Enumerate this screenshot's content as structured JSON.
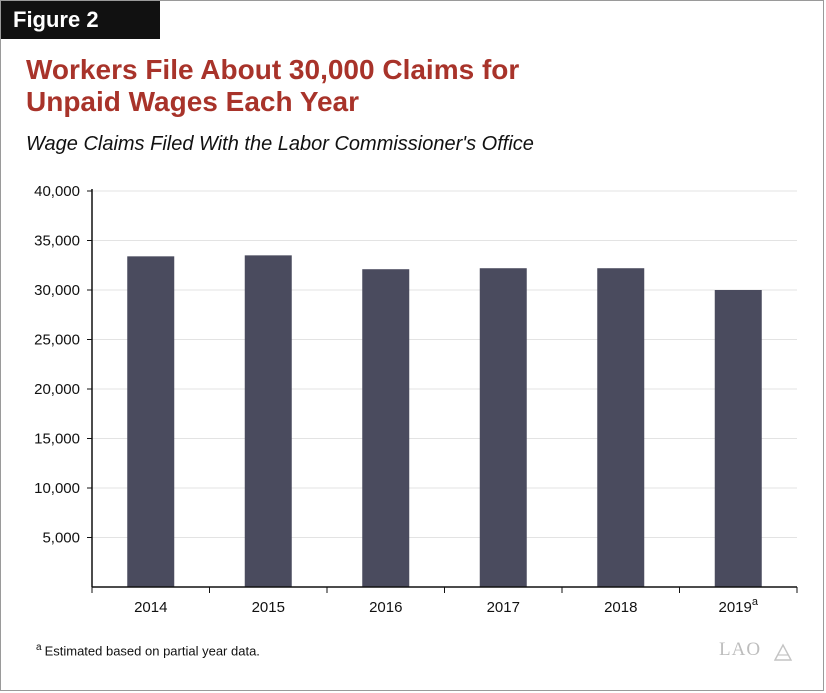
{
  "figure_label": "Figure 2",
  "title_line1": "Workers File About 30,000 Claims for",
  "title_line2": "Unpaid Wages Each Year",
  "subtitle": "Wage Claims Filed With the Labor Commissioner's Office",
  "footnote_marker": "a",
  "footnote_text": "Estimated based on partial year data.",
  "logo_text": "LAO",
  "chart_data": {
    "type": "bar",
    "categories": [
      "2014",
      "2015",
      "2016",
      "2017",
      "2018",
      "2019"
    ],
    "category_superscripts": [
      "",
      "",
      "",
      "",
      "",
      "a"
    ],
    "values": [
      33400,
      33500,
      32100,
      32200,
      32200,
      30000
    ],
    "yticks": [
      "5,000",
      "10,000",
      "15,000",
      "20,000",
      "25,000",
      "30,000",
      "35,000",
      "40,000"
    ],
    "ytick_values": [
      5000,
      10000,
      15000,
      20000,
      25000,
      30000,
      35000,
      40000
    ],
    "ylim": [
      0,
      40000
    ],
    "bar_color": "#4a4b5e",
    "grid": true,
    "grid_color": "#e3e3e3"
  }
}
